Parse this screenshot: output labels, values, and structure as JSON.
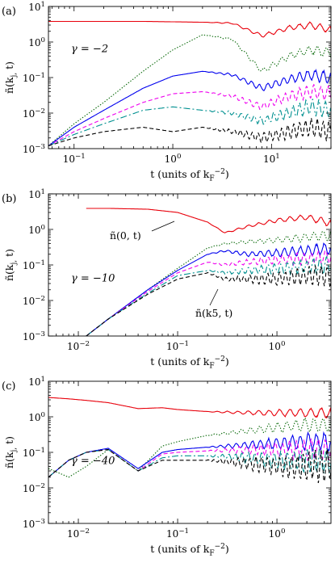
{
  "chart_data": [
    {
      "type": "line",
      "panel_label": "(a)",
      "annotation": "γ = −2",
      "xlabel": "t (units of k_F^−2)",
      "ylabel": "ñ(k_j, t)",
      "x_scale": "log",
      "y_scale": "log",
      "xlim": [
        0.055,
        40
      ],
      "ylim": [
        0.001,
        10
      ],
      "xtick_labels": [
        "10^−1",
        "10^0",
        "10^1"
      ],
      "ytick_labels": [
        "10^−3",
        "10^−2",
        "10^−1",
        "10^0",
        "10^1"
      ],
      "x": [
        0.055,
        0.1,
        0.2,
        0.5,
        1,
        2,
        4,
        8,
        15,
        25,
        40
      ],
      "series": [
        {
          "color": "#e8000b",
          "dash": "solid",
          "values": [
            3.8,
            3.8,
            3.8,
            3.8,
            3.7,
            3.6,
            3.4,
            1.5,
            2.5,
            3.0,
            2.2
          ]
        },
        {
          "color": "#006400",
          "dash": "dotted",
          "values": [
            0.0012,
            0.005,
            0.02,
            0.15,
            0.6,
            1.6,
            1.2,
            0.15,
            0.4,
            0.6,
            0.5
          ]
        },
        {
          "color": "#0000ee",
          "dash": "solid",
          "values": [
            0.0012,
            0.004,
            0.012,
            0.05,
            0.11,
            0.15,
            0.12,
            0.05,
            0.09,
            0.12,
            0.1
          ]
        },
        {
          "color": "#ee00ee",
          "dash": "dashed",
          "values": [
            0.0012,
            0.003,
            0.007,
            0.02,
            0.035,
            0.04,
            0.03,
            0.015,
            0.03,
            0.04,
            0.035
          ]
        },
        {
          "color": "#009090",
          "dash": "dashdot",
          "values": [
            0.0012,
            0.0025,
            0.005,
            0.012,
            0.015,
            0.012,
            0.01,
            0.006,
            0.01,
            0.015,
            0.012
          ]
        },
        {
          "color": "#000000",
          "dash": "dashed",
          "values": [
            0.0012,
            0.002,
            0.003,
            0.004,
            0.003,
            0.004,
            0.003,
            0.002,
            0.003,
            0.004,
            0.003
          ]
        }
      ]
    },
    {
      "type": "line",
      "panel_label": "(b)",
      "annotation": "γ = −10",
      "xlabel": "t (units of k_F^−2)",
      "ylabel": "ñ(k_j, t)",
      "x_scale": "log",
      "y_scale": "log",
      "xlim": [
        0.005,
        3.5
      ],
      "ylim": [
        0.001,
        10
      ],
      "xtick_labels": [
        "10^−2",
        "10^−1",
        "10^0"
      ],
      "ytick_labels": [
        "10^−3",
        "10^−2",
        "10^−1",
        "10^0",
        "10^1"
      ],
      "labels": [
        "ñ(0, t)",
        "ñ(k5, t)"
      ],
      "x": [
        0.012,
        0.02,
        0.05,
        0.1,
        0.2,
        0.3,
        0.5,
        1,
        2,
        3.5
      ],
      "series": [
        {
          "color": "#e8000b",
          "dash": "solid",
          "values": [
            3.9,
            3.9,
            3.7,
            3.0,
            1.6,
            0.8,
            1.2,
            1.8,
            2.2,
            1.5
          ]
        },
        {
          "color": "#006400",
          "dash": "dotted",
          "values": [
            0.001,
            0.003,
            0.02,
            0.08,
            0.3,
            0.4,
            0.45,
            0.5,
            0.6,
            0.7
          ]
        },
        {
          "color": "#0000ee",
          "dash": "solid",
          "values": [
            0.001,
            0.003,
            0.02,
            0.07,
            0.2,
            0.25,
            0.2,
            0.22,
            0.25,
            0.3
          ]
        },
        {
          "color": "#ee00ee",
          "dash": "dashed",
          "values": [
            0.001,
            0.003,
            0.018,
            0.06,
            0.12,
            0.1,
            0.12,
            0.14,
            0.15,
            0.18
          ]
        },
        {
          "color": "#009090",
          "dash": "dashdot",
          "values": [
            0.001,
            0.003,
            0.016,
            0.05,
            0.07,
            0.06,
            0.07,
            0.08,
            0.09,
            0.1
          ]
        },
        {
          "color": "#000000",
          "dash": "dashed",
          "values": [
            0.001,
            0.003,
            0.015,
            0.04,
            0.06,
            0.04,
            0.04,
            0.04,
            0.05,
            0.05
          ]
        }
      ]
    },
    {
      "type": "line",
      "panel_label": "(c)",
      "annotation": "γ = −40",
      "xlabel": "t (units of k_F^−2)",
      "ylabel": "ñ(k_j, t)",
      "x_scale": "log",
      "y_scale": "log",
      "xlim": [
        0.005,
        3.5
      ],
      "ylim": [
        0.001,
        10
      ],
      "xtick_labels": [
        "10^−2",
        "10^−1",
        "10^0"
      ],
      "ytick_labels": [
        "10^−3",
        "10^−2",
        "10^−1",
        "10^0",
        "10^1"
      ],
      "x": [
        0.005,
        0.008,
        0.012,
        0.02,
        0.04,
        0.07,
        0.1,
        0.2,
        0.5,
        1,
        2,
        3.5
      ],
      "series": [
        {
          "color": "#e8000b",
          "dash": "solid",
          "values": [
            3.5,
            3.2,
            2.9,
            2.5,
            1.7,
            1.8,
            1.6,
            1.4,
            1.3,
            1.3,
            1.3,
            1.3
          ]
        },
        {
          "color": "#006400",
          "dash": "dotted",
          "values": [
            0.035,
            0.02,
            0.04,
            0.12,
            0.03,
            0.15,
            0.2,
            0.3,
            0.4,
            0.5,
            0.6,
            0.6
          ]
        },
        {
          "color": "#0000ee",
          "dash": "solid",
          "values": [
            0.02,
            0.06,
            0.1,
            0.13,
            0.035,
            0.1,
            0.12,
            0.14,
            0.16,
            0.18,
            0.2,
            0.2
          ]
        },
        {
          "color": "#ee00ee",
          "dash": "dashed",
          "values": [
            0.02,
            0.06,
            0.1,
            0.12,
            0.03,
            0.09,
            0.1,
            0.11,
            0.12,
            0.12,
            0.12,
            0.12
          ]
        },
        {
          "color": "#009090",
          "dash": "dashdot",
          "values": [
            0.02,
            0.06,
            0.1,
            0.12,
            0.03,
            0.07,
            0.08,
            0.08,
            0.07,
            0.06,
            0.06,
            0.06
          ]
        },
        {
          "color": "#000000",
          "dash": "dashed",
          "values": [
            0.02,
            0.06,
            0.1,
            0.12,
            0.03,
            0.06,
            0.06,
            0.06,
            0.05,
            0.04,
            0.04,
            0.04
          ]
        }
      ]
    }
  ]
}
